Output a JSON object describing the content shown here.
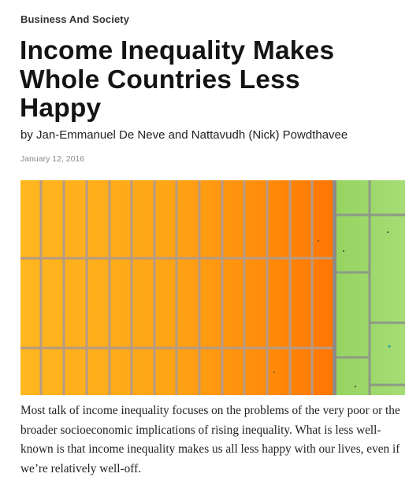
{
  "topic": {
    "label": "Business And Society"
  },
  "headline": {
    "line1": "Income Inequality Makes",
    "line2": "Whole Countries Less",
    "line3": "Happy"
  },
  "byline": {
    "prefix": "by ",
    "author1": "Jan-Emmanuel De Neve",
    "joiner": " and ",
    "author2": "Nattavudh (Nick) Powdthavee"
  },
  "date": {
    "text": "January 12, 2016"
  },
  "hero_image": {
    "subject": "orange-and-green-tile-wall",
    "colors": {
      "orange_light": "#ffb21d",
      "orange_dark": "#ff7a06",
      "green": "#9ed86a",
      "grout": "#a7988c"
    }
  },
  "dek": {
    "text": "Most talk of income inequality focuses on the problems of the very poor or the broader socioeconomic implications of rising inequality. What is less well-known is that income inequality makes us all less happy with our lives, even if we’re relatively well-off."
  }
}
